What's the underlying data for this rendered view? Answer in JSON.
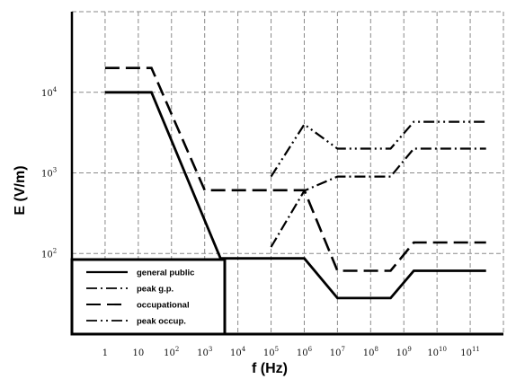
{
  "chart_data": {
    "type": "line",
    "title": "",
    "xlabel": "f (Hz)",
    "ylabel": "E (V/m)",
    "x_scale": "log",
    "y_scale": "log",
    "xlim": [
      0.1,
      1000000000000
    ],
    "ylim": [
      10,
      100000
    ],
    "grid": true,
    "legend_position": "bottom-left",
    "x_ticks": [
      {
        "value": 1,
        "base": "1",
        "exp": ""
      },
      {
        "value": 10,
        "base": "10",
        "exp": ""
      },
      {
        "value": 100,
        "base": "10",
        "exp": "2"
      },
      {
        "value": 1000,
        "base": "10",
        "exp": "3"
      },
      {
        "value": 10000,
        "base": "10",
        "exp": "4"
      },
      {
        "value": 100000,
        "base": "10",
        "exp": "5"
      },
      {
        "value": 1000000,
        "base": "10",
        "exp": "6"
      },
      {
        "value": 10000000,
        "base": "10",
        "exp": "7"
      },
      {
        "value": 100000000,
        "base": "10",
        "exp": "8"
      },
      {
        "value": 1000000000,
        "base": "10",
        "exp": "9"
      },
      {
        "value": 10000000000,
        "base": "10",
        "exp": "10"
      },
      {
        "value": 100000000000,
        "base": "10",
        "exp": "11"
      }
    ],
    "y_ticks": [
      {
        "value": 100,
        "base": "10",
        "exp": "2"
      },
      {
        "value": 1000,
        "base": "10",
        "exp": "3"
      },
      {
        "value": 10000,
        "base": "10",
        "exp": "4"
      }
    ],
    "series": [
      {
        "name": "general public",
        "style": "solid",
        "x": [
          1,
          25,
          3000,
          1000000,
          10000000,
          400000000,
          2000000000,
          300000000000
        ],
        "y": [
          10000,
          10000,
          87,
          87,
          28,
          28,
          61,
          61
        ]
      },
      {
        "name": "peak g.p.",
        "style": "dashdot",
        "x": [
          100000,
          1000000,
          10000000,
          400000000,
          2000000000,
          300000000000
        ],
        "y": [
          120,
          600,
          900,
          900,
          2000,
          2000
        ]
      },
      {
        "name": "occupational",
        "style": "dashed",
        "x": [
          1,
          25,
          1000,
          1000000,
          10000000,
          400000000,
          2000000000,
          300000000000
        ],
        "y": [
          20000,
          20000,
          610,
          610,
          61,
          61,
          137,
          137
        ]
      },
      {
        "name": "peak occup.",
        "style": "dashdotdot",
        "x": [
          100000,
          1000000,
          10000000,
          400000000,
          2000000000,
          300000000000
        ],
        "y": [
          900,
          4000,
          2000,
          2000,
          4300,
          4300
        ]
      }
    ]
  }
}
